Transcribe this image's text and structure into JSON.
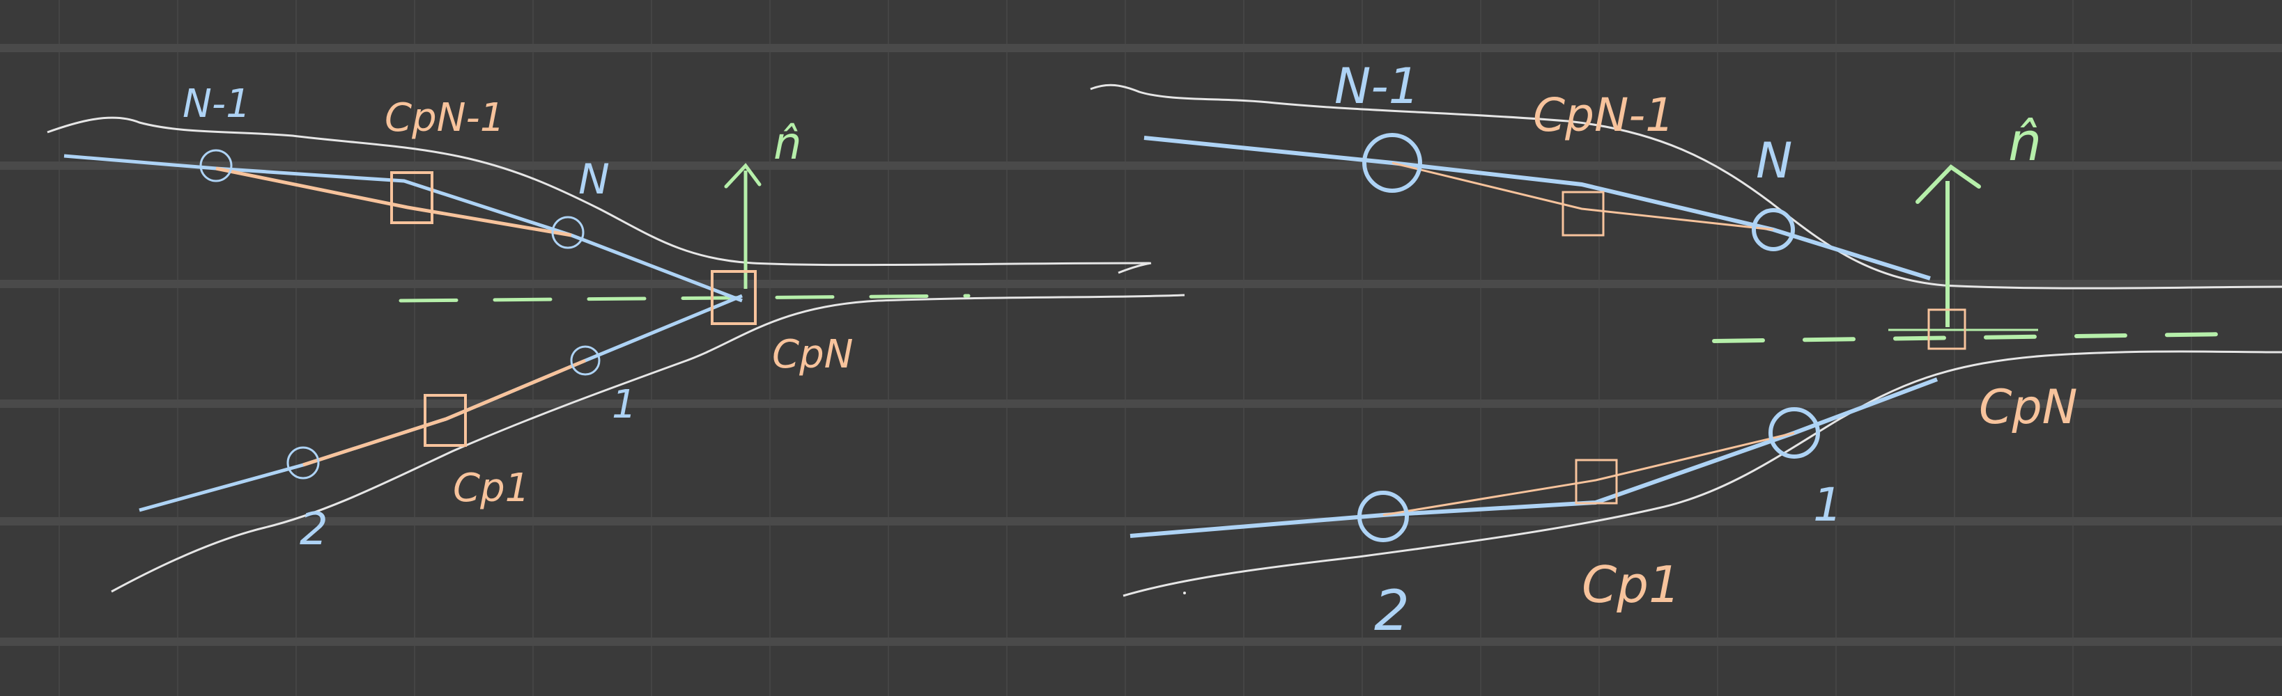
{
  "canvas": {
    "background": "#3a3a3a",
    "gridline_color": "#444444",
    "major_rule_color": "#4a4a4a"
  },
  "colors": {
    "wall": "#e6e6e6",
    "panel": "#aed3f5",
    "control_point": "#f7c39c",
    "symmetry": "#b6efaa"
  },
  "sketch_left": {
    "label_n_minus_1": "N-1",
    "label_cp_n_minus_1": "CpN-1",
    "label_n": "N",
    "label_n_hat": "n̂",
    "label_cp_n": "CpN",
    "label_1": "1",
    "label_cp_1": "Cp1",
    "label_2": "2"
  },
  "sketch_right": {
    "label_n_minus_1": "N-1",
    "label_cp_n_minus_1": "CpN-1",
    "label_n": "N",
    "label_n_hat": "n̂",
    "label_cp_n": "CpN",
    "label_1": "1",
    "label_cp_1": "Cp1",
    "label_2": "2"
  }
}
